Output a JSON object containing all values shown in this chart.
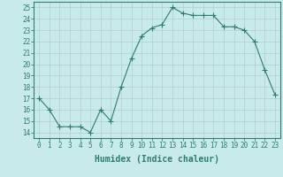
{
  "x": [
    0,
    1,
    2,
    3,
    4,
    5,
    6,
    7,
    8,
    9,
    10,
    11,
    12,
    13,
    14,
    15,
    16,
    17,
    18,
    19,
    20,
    21,
    22,
    23
  ],
  "y": [
    17,
    16,
    14.5,
    14.5,
    14.5,
    14,
    16,
    15,
    18,
    20.5,
    22.5,
    23.2,
    23.5,
    25,
    24.5,
    24.3,
    24.3,
    24.3,
    23.3,
    23.3,
    23,
    22,
    19.5,
    17.3
  ],
  "line_color": "#2e7d6e",
  "marker": "+",
  "marker_size": 4,
  "background_color": "#c8eaea",
  "grid_color": "#b0d0d0",
  "xlabel": "Humidex (Indice chaleur)",
  "ylim": [
    13.5,
    25.5
  ],
  "xlim": [
    -0.5,
    23.5
  ],
  "yticks": [
    14,
    15,
    16,
    17,
    18,
    19,
    20,
    21,
    22,
    23,
    24,
    25
  ],
  "xticks": [
    0,
    1,
    2,
    3,
    4,
    5,
    6,
    7,
    8,
    9,
    10,
    11,
    12,
    13,
    14,
    15,
    16,
    17,
    18,
    19,
    20,
    21,
    22,
    23
  ],
  "tick_color": "#2e7d6e",
  "label_fontsize": 5.5,
  "xlabel_fontsize": 7,
  "axis_color": "#2e7d6e",
  "linewidth": 0.8,
  "markeredgewidth": 0.8
}
